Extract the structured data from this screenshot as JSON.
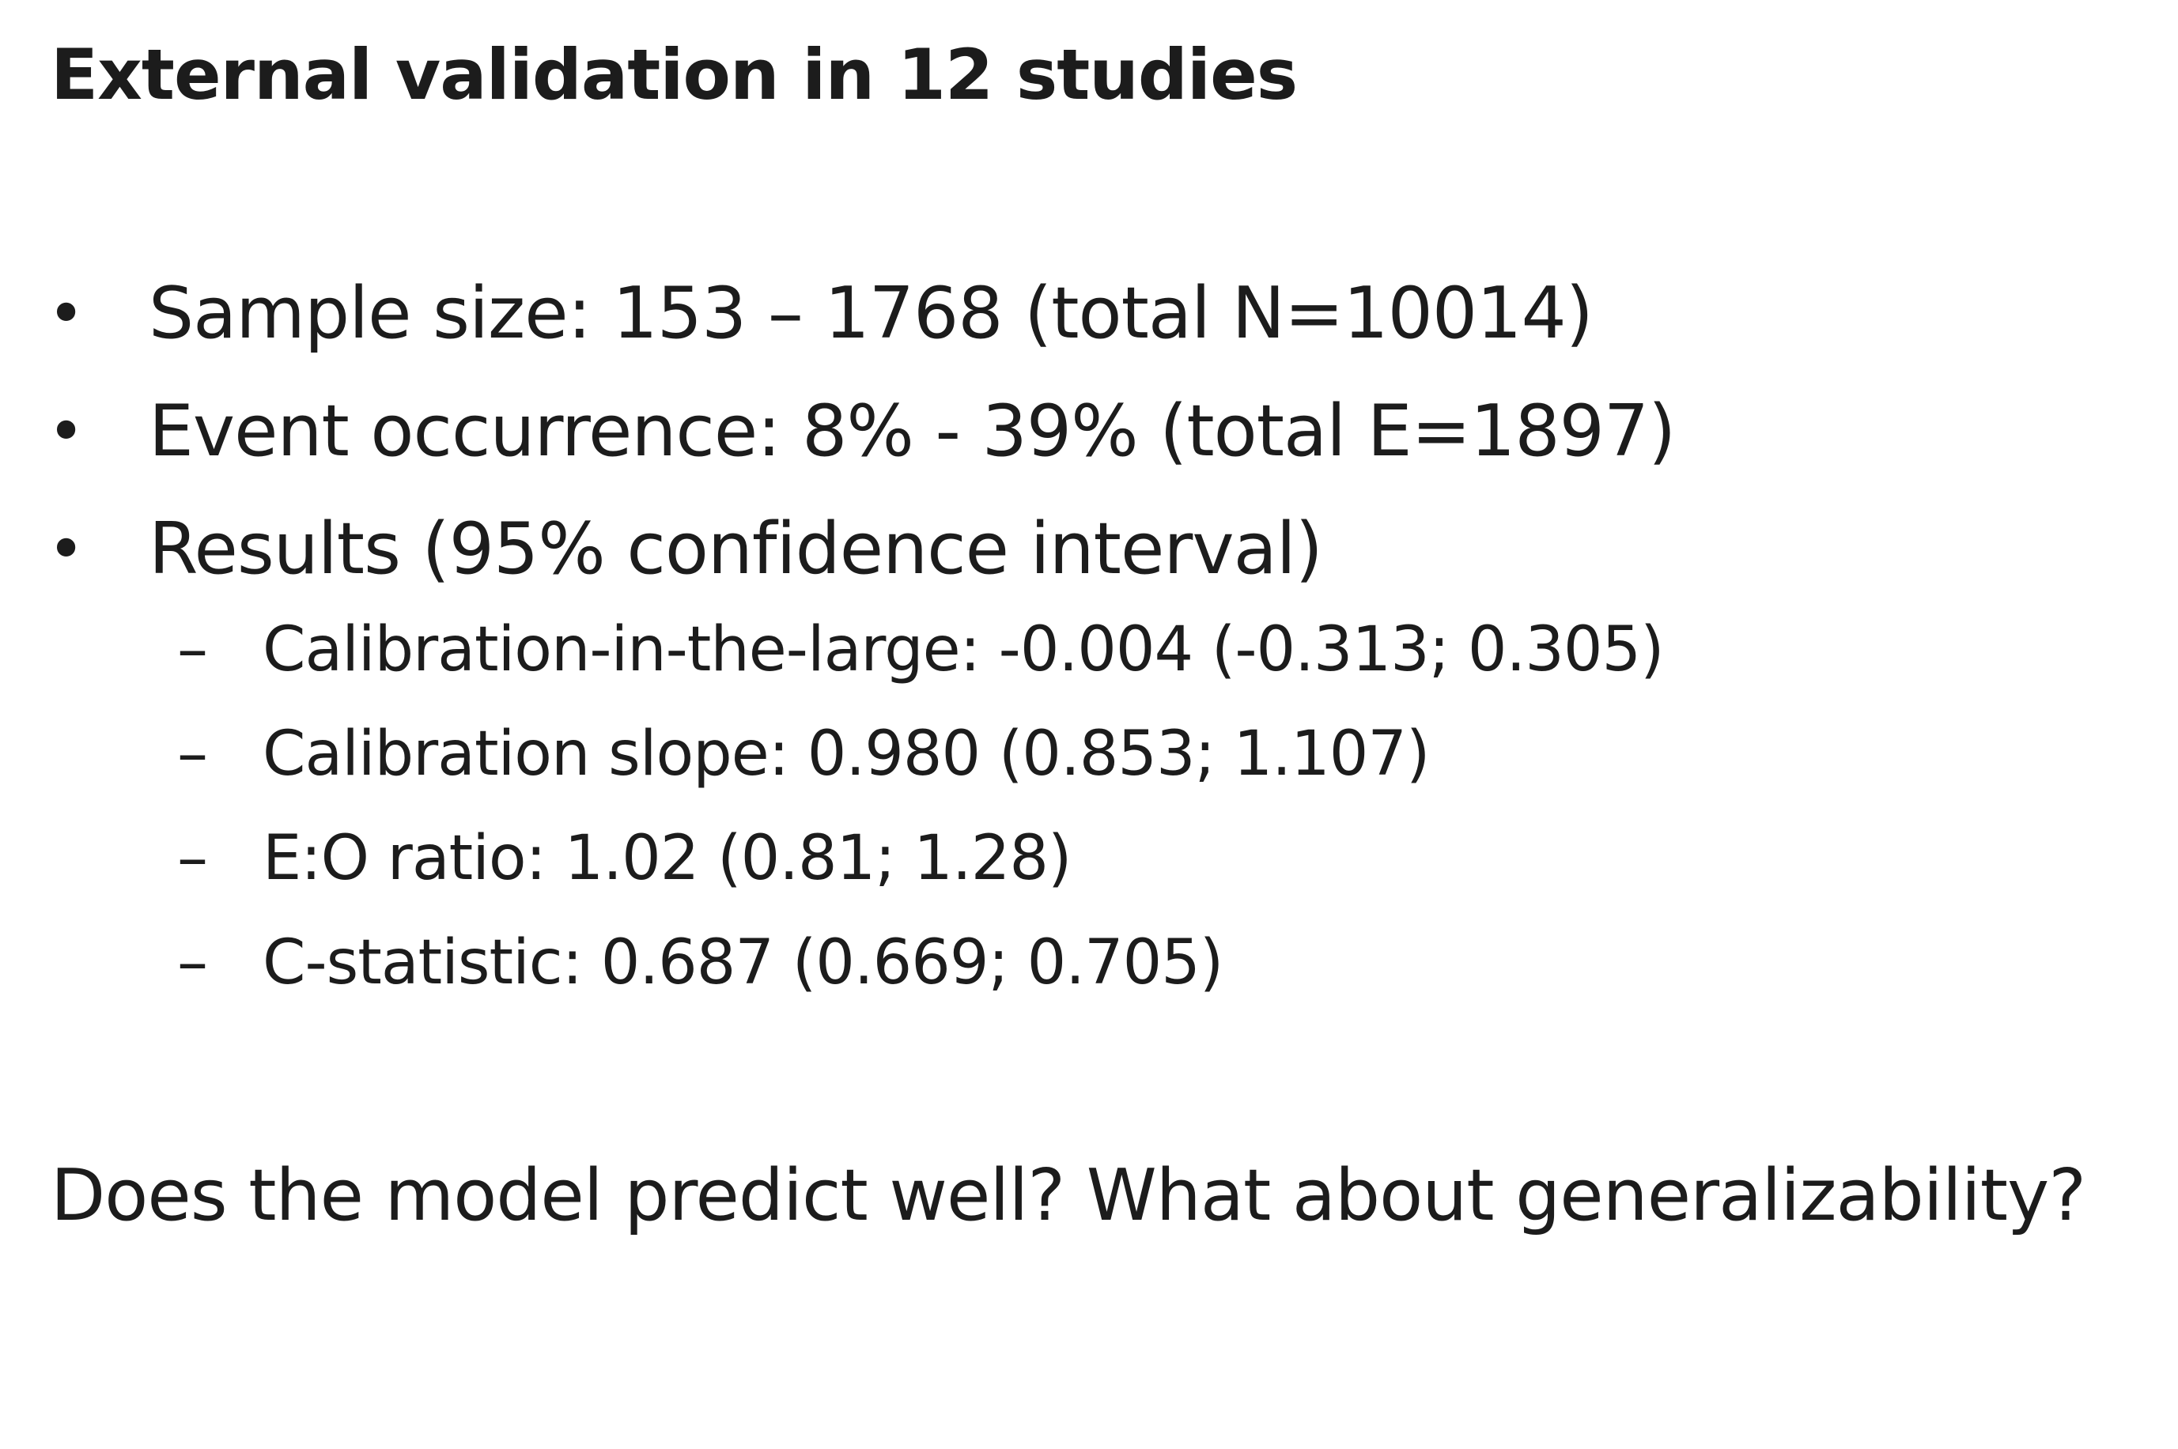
{
  "title": "External validation in 12 studies",
  "bullets": [
    {
      "marker": "•",
      "text": "Sample size: 153 – 1768 (total N=10014)"
    },
    {
      "marker": "•",
      "text": "Event occurrence: 8% - 39% (total E=1897)"
    },
    {
      "marker": "•",
      "text": "Results (95% confidence interval)"
    }
  ],
  "results": [
    {
      "marker": "–",
      "text": "Calibration-in-the-large: -0.004 (-0.313; 0.305)"
    },
    {
      "marker": "–",
      "text": "Calibration slope: 0.980 (0.853; 1.107)"
    },
    {
      "marker": "–",
      "text": "E:O ratio: 1.02 (0.81; 1.28)"
    },
    {
      "marker": "–",
      "text": "C-statistic: 0.687 (0.669; 0.705)"
    }
  ],
  "question": "Does the model predict well? What about generalizability?"
}
